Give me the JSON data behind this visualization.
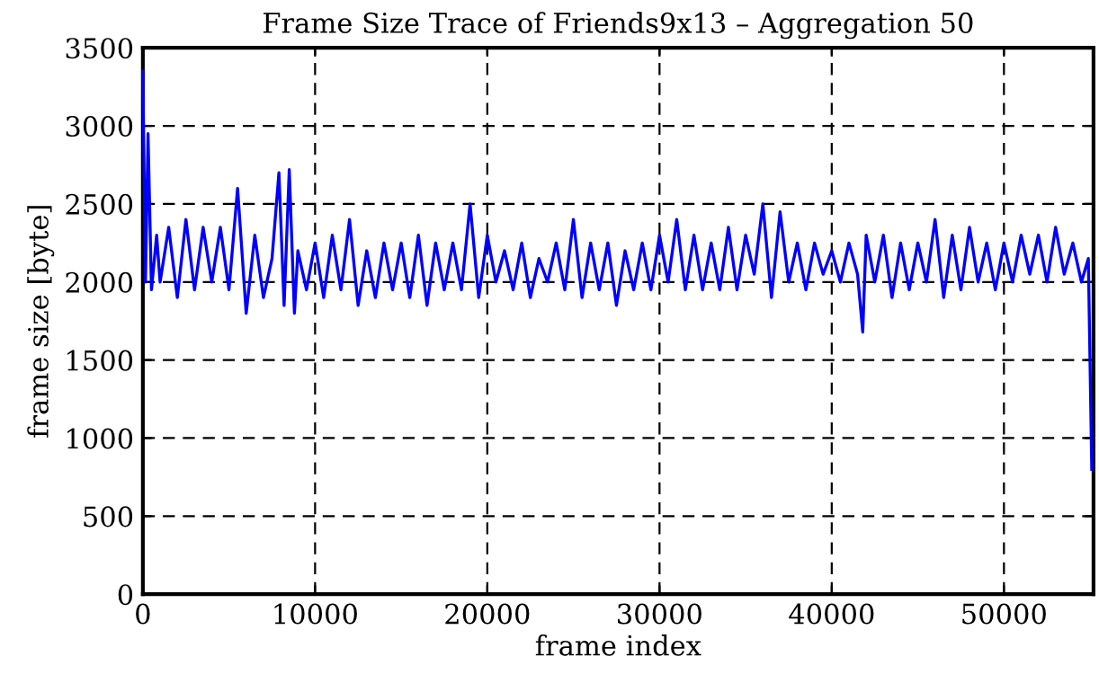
{
  "chart_data": {
    "type": "line",
    "title": "Frame Size Trace of Friends9x13 – Aggregation 50",
    "xlabel": "frame index",
    "ylabel": "frame size [byte]",
    "xlim": [
      0,
      55200
    ],
    "ylim": [
      0,
      3500
    ],
    "xticks": [
      0,
      10000,
      20000,
      30000,
      40000,
      50000
    ],
    "yticks": [
      0,
      500,
      1000,
      1500,
      2000,
      2500,
      3000,
      3500
    ],
    "grid": true,
    "line_style": "solid",
    "marker": "none",
    "series": [
      {
        "color": "#0000ff",
        "x": [
          0,
          150,
          300,
          500,
          800,
          1000,
          1500,
          2000,
          2500,
          3000,
          3500,
          4000,
          4500,
          5000,
          5500,
          6000,
          6500,
          7000,
          7500,
          7900,
          8200,
          8500,
          8800,
          9000,
          9500,
          10000,
          10500,
          11000,
          11500,
          12000,
          12500,
          13000,
          13500,
          14000,
          14500,
          15000,
          15500,
          16000,
          16500,
          17000,
          17500,
          18000,
          18500,
          19000,
          19500,
          20000,
          20500,
          21000,
          21500,
          22000,
          22500,
          23000,
          23500,
          24000,
          24500,
          25000,
          25500,
          26000,
          26500,
          27000,
          27500,
          28000,
          28500,
          29000,
          29500,
          30000,
          30500,
          31000,
          31500,
          32000,
          32500,
          33000,
          33500,
          34000,
          34500,
          35000,
          35500,
          36000,
          36500,
          37000,
          37500,
          38000,
          38500,
          39000,
          39500,
          40000,
          40500,
          41000,
          41500,
          41800,
          42000,
          42500,
          43000,
          43500,
          44000,
          44500,
          45000,
          45500,
          46000,
          46500,
          47000,
          47500,
          48000,
          48500,
          49000,
          49500,
          50000,
          50500,
          51000,
          51500,
          52000,
          52500,
          53000,
          53500,
          54000,
          54500,
          54900,
          55100
        ],
        "values": [
          3350,
          2000,
          2950,
          1950,
          2300,
          2000,
          2350,
          1900,
          2400,
          1950,
          2350,
          2000,
          2350,
          1950,
          2600,
          1800,
          2300,
          1900,
          2150,
          2700,
          1850,
          2720,
          1800,
          2200,
          1950,
          2250,
          1900,
          2300,
          1950,
          2400,
          1850,
          2200,
          1900,
          2250,
          1950,
          2250,
          1900,
          2300,
          1850,
          2250,
          1950,
          2250,
          1950,
          2500,
          1900,
          2300,
          2000,
          2200,
          1950,
          2250,
          1900,
          2150,
          2000,
          2250,
          1950,
          2400,
          1900,
          2250,
          1950,
          2250,
          1850,
          2200,
          1950,
          2250,
          1950,
          2300,
          2000,
          2400,
          1950,
          2300,
          1950,
          2250,
          1950,
          2350,
          1950,
          2300,
          2050,
          2500,
          1900,
          2450,
          2000,
          2250,
          1950,
          2250,
          2050,
          2200,
          2000,
          2250,
          2050,
          1680,
          2300,
          2000,
          2300,
          1900,
          2250,
          1950,
          2250,
          2000,
          2400,
          1900,
          2300,
          1950,
          2350,
          2000,
          2250,
          1950,
          2250,
          2000,
          2300,
          2050,
          2300,
          2000,
          2350,
          2050,
          2250,
          2000,
          2150,
          800
        ]
      }
    ]
  }
}
